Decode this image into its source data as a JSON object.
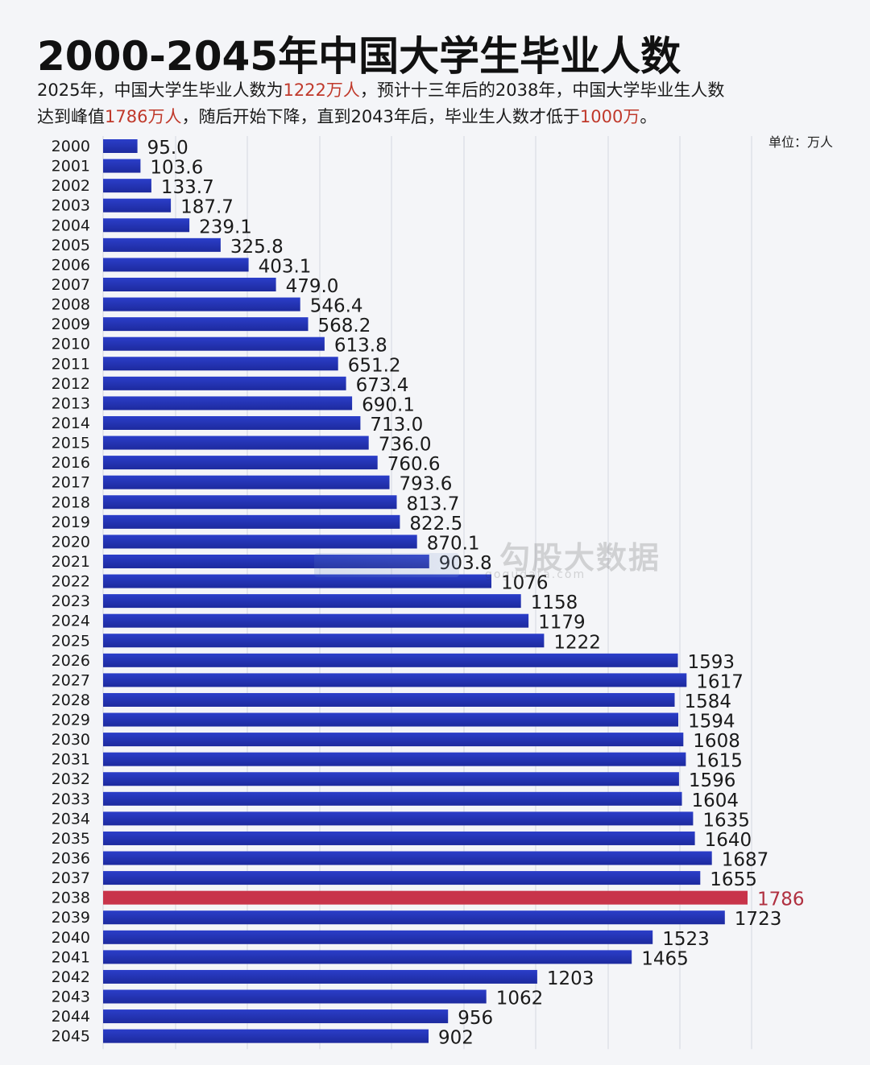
{
  "title": "2000-2045年中国大学生毕业人数",
  "subtitle": {
    "line1_a": "2025年，中国大学生毕业人数为",
    "line1_hl": "1222万人",
    "line1_b": "，预计十三年后的2038年，中国大学毕业生人数",
    "line2_a": "达到峰值",
    "line2_hl": "1786万人",
    "line2_b": "，随后开始下降，直到2043年后，毕业生人数才低于",
    "line2_hl2": "1000万",
    "line2_c": "。"
  },
  "unit_label": "单位：万人",
  "watermark": {
    "text": "勾股大数据",
    "url": "gogudata.com"
  },
  "colors": {
    "bar": "#2b3ec9",
    "bar_dark": "#1d2a9e",
    "peak_bar": "#c8344a",
    "highlight_text": "#c0392b"
  },
  "chart_data": {
    "type": "bar",
    "orientation": "horizontal",
    "title": "2000-2045年中国大学生毕业人数",
    "unit": "万人",
    "highlight_category": "2038",
    "grid": true,
    "categories": [
      "2000",
      "2001",
      "2002",
      "2003",
      "2004",
      "2005",
      "2006",
      "2007",
      "2008",
      "2009",
      "2010",
      "2011",
      "2012",
      "2013",
      "2014",
      "2015",
      "2016",
      "2017",
      "2018",
      "2019",
      "2020",
      "2021",
      "2022",
      "2023",
      "2024",
      "2025",
      "2026",
      "2027",
      "2028",
      "2029",
      "2030",
      "2031",
      "2032",
      "2033",
      "2034",
      "2035",
      "2036",
      "2037",
      "2038",
      "2039",
      "2040",
      "2041",
      "2042",
      "2043",
      "2044",
      "2045"
    ],
    "values": [
      95.0,
      103.6,
      133.7,
      187.7,
      239.1,
      325.8,
      403.1,
      479.0,
      546.4,
      568.2,
      613.8,
      651.2,
      673.4,
      690.1,
      713.0,
      736.0,
      760.6,
      793.6,
      813.7,
      822.5,
      870.1,
      903.8,
      1076,
      1158,
      1179,
      1222,
      1593,
      1617,
      1584,
      1594,
      1608,
      1615,
      1596,
      1604,
      1635,
      1640,
      1687,
      1655,
      1786,
      1723,
      1523,
      1465,
      1203,
      1062,
      956,
      902
    ],
    "value_labels": [
      "95.0",
      "103.6",
      "133.7",
      "187.7",
      "239.1",
      "325.8",
      "403.1",
      "479.0",
      "546.4",
      "568.2",
      "613.8",
      "651.2",
      "673.4",
      "690.1",
      "713.0",
      "736.0",
      "760.6",
      "793.6",
      "813.7",
      "822.5",
      "870.1",
      "903.8",
      "1076",
      "1158",
      "1179",
      "1222",
      "1593",
      "1617",
      "1584",
      "1594",
      "1608",
      "1615",
      "1596",
      "1604",
      "1635",
      "1640",
      "1687",
      "1655",
      "1786",
      "1723",
      "1523",
      "1465",
      "1203",
      "1062",
      "956",
      "902"
    ],
    "xlim": [
      0,
      1786
    ]
  }
}
